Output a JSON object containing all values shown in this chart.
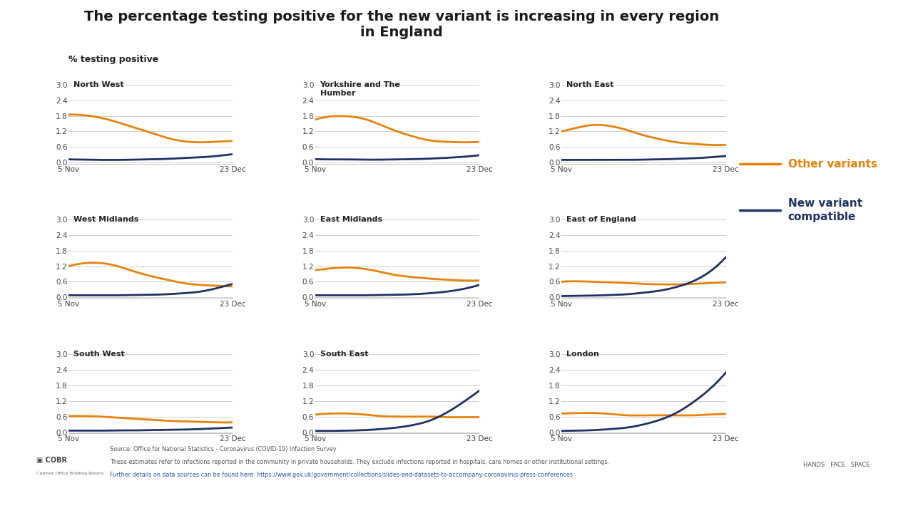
{
  "title_line1": "The percentage testing positive for the new variant is increasing in every region",
  "title_line2": "in England",
  "ylabel": "% testing positive",
  "background_color": "#ffffff",
  "title_color": "#1a1a1a",
  "orange_color": "#E8820C",
  "blue_color": "#1F3066",
  "grid_color": "#d0d0d0",
  "legend_other": "Other variants",
  "legend_new": "New variant\ncompatible",
  "legend_other_color": "#E8820C",
  "legend_new_color": "#1F3066",
  "subplots": [
    {
      "title": "North West",
      "orange": [
        1.85,
        1.82,
        1.72,
        1.55,
        1.35,
        1.15,
        0.95,
        0.82,
        0.78,
        0.8,
        0.83
      ],
      "blue": [
        0.12,
        0.11,
        0.1,
        0.1,
        0.11,
        0.12,
        0.14,
        0.17,
        0.2,
        0.25,
        0.32
      ]
    },
    {
      "title": "Yorkshire and The\nHumber",
      "orange": [
        1.65,
        1.78,
        1.78,
        1.68,
        1.45,
        1.2,
        1.0,
        0.85,
        0.8,
        0.78,
        0.8
      ],
      "blue": [
        0.13,
        0.12,
        0.12,
        0.11,
        0.11,
        0.12,
        0.13,
        0.15,
        0.18,
        0.22,
        0.28
      ]
    },
    {
      "title": "North East",
      "orange": [
        1.2,
        1.35,
        1.45,
        1.4,
        1.25,
        1.05,
        0.9,
        0.78,
        0.72,
        0.68,
        0.68
      ],
      "blue": [
        0.1,
        0.1,
        0.1,
        0.1,
        0.1,
        0.11,
        0.12,
        0.14,
        0.16,
        0.2,
        0.25
      ]
    },
    {
      "title": "West Midlands",
      "orange": [
        1.2,
        1.32,
        1.32,
        1.2,
        1.0,
        0.82,
        0.68,
        0.55,
        0.48,
        0.45,
        0.42
      ],
      "blue": [
        0.08,
        0.08,
        0.08,
        0.08,
        0.09,
        0.1,
        0.12,
        0.16,
        0.22,
        0.35,
        0.52
      ]
    },
    {
      "title": "East Midlands",
      "orange": [
        1.05,
        1.12,
        1.15,
        1.1,
        0.98,
        0.85,
        0.78,
        0.72,
        0.68,
        0.65,
        0.65
      ],
      "blue": [
        0.08,
        0.08,
        0.08,
        0.08,
        0.09,
        0.1,
        0.12,
        0.16,
        0.22,
        0.32,
        0.48
      ]
    },
    {
      "title": "East of England",
      "orange": [
        0.6,
        0.62,
        0.6,
        0.58,
        0.55,
        0.52,
        0.5,
        0.5,
        0.52,
        0.55,
        0.58
      ],
      "blue": [
        0.05,
        0.06,
        0.07,
        0.09,
        0.12,
        0.18,
        0.26,
        0.4,
        0.62,
        0.98,
        1.55
      ]
    },
    {
      "title": "South West",
      "orange": [
        0.62,
        0.62,
        0.6,
        0.56,
        0.52,
        0.48,
        0.44,
        0.42,
        0.4,
        0.38,
        0.38
      ],
      "blue": [
        0.06,
        0.06,
        0.06,
        0.07,
        0.07,
        0.08,
        0.09,
        0.1,
        0.12,
        0.15,
        0.18
      ]
    },
    {
      "title": "South East",
      "orange": [
        0.68,
        0.72,
        0.72,
        0.68,
        0.62,
        0.6,
        0.6,
        0.6,
        0.58,
        0.58,
        0.58
      ],
      "blue": [
        0.05,
        0.05,
        0.06,
        0.08,
        0.12,
        0.18,
        0.28,
        0.45,
        0.75,
        1.15,
        1.6
      ]
    },
    {
      "title": "London",
      "orange": [
        0.72,
        0.74,
        0.74,
        0.7,
        0.65,
        0.65,
        0.65,
        0.65,
        0.65,
        0.68,
        0.7
      ],
      "blue": [
        0.05,
        0.06,
        0.08,
        0.12,
        0.18,
        0.3,
        0.48,
        0.75,
        1.15,
        1.65,
        2.3
      ]
    }
  ],
  "x_ticks": [
    0,
    10
  ],
  "x_tick_labels": [
    "5 Nov",
    "23 Dec"
  ],
  "yticks": [
    0.0,
    0.6,
    1.2,
    1.8,
    2.4,
    3.0
  ],
  "ylim": [
    -0.05,
    3.2
  ],
  "source_line1": "Source: Office for National Statistics - Coronavirus (COVID-19) Infection Survey",
  "source_line2": "These estimates refer to infections reported in the community in private households. They exclude infections reported in hospitals, care homes or other institutional settings.",
  "source_line3": "Further details on data sources can be found here: https://www.gov.uk/government/collections/slides-and-datasets-to-accompany-coronavirus-press-conferences"
}
